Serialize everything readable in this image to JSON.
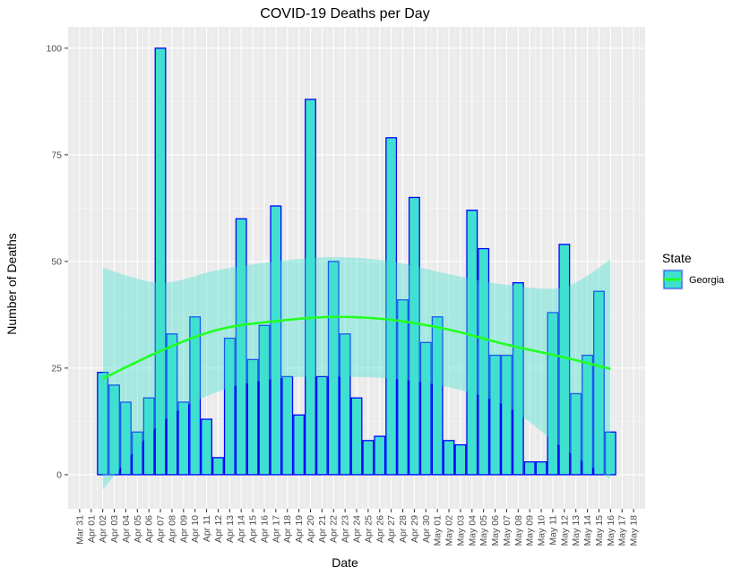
{
  "chart_data": {
    "type": "bar",
    "title": "COVID-19 Deaths per Day",
    "xlabel": "Date",
    "ylabel": "Number of Deaths",
    "ylim": [
      -8,
      105
    ],
    "xlim": [
      "2020-03-30",
      "2020-05-19"
    ],
    "y_ticks": [
      0,
      25,
      50,
      75,
      100
    ],
    "grid": true,
    "x_tick_labels": [
      "Mar 31",
      "Apr 01",
      "Apr 02",
      "Apr 03",
      "Apr 04",
      "Apr 05",
      "Apr 06",
      "Apr 07",
      "Apr 08",
      "Apr 09",
      "Apr 10",
      "Apr 11",
      "Apr 12",
      "Apr 13",
      "Apr 14",
      "Apr 15",
      "Apr 16",
      "Apr 17",
      "Apr 18",
      "Apr 19",
      "Apr 20",
      "Apr 21",
      "Apr 22",
      "Apr 23",
      "Apr 24",
      "Apr 25",
      "Apr 26",
      "Apr 27",
      "Apr 28",
      "Apr 29",
      "Apr 30",
      "May 01",
      "May 02",
      "May 03",
      "May 04",
      "May 05",
      "May 06",
      "May 07",
      "May 08",
      "May 09",
      "May 10",
      "May 11",
      "May 12",
      "May 13",
      "May 14",
      "May 15",
      "May 16",
      "May 17",
      "May 18"
    ],
    "bars": {
      "start_date": "2020-04-02",
      "values": [
        24,
        21,
        17,
        10,
        18,
        100,
        33,
        17,
        37,
        13,
        4,
        32,
        60,
        27,
        35,
        63,
        23,
        14,
        88,
        23,
        50,
        33,
        18,
        8,
        9,
        79,
        41,
        65,
        31,
        37,
        8,
        7,
        62,
        53,
        28,
        28,
        45,
        3,
        3,
        38,
        54,
        19,
        28,
        43,
        10
      ],
      "fill": "#40e0d0",
      "stroke": "#0000ff"
    },
    "smooth": {
      "x": [
        "2020-04-02",
        "2020-04-07",
        "2020-04-12",
        "2020-04-17",
        "2020-04-22",
        "2020-04-27",
        "2020-05-02",
        "2020-05-07",
        "2020-05-12",
        "2020-05-16"
      ],
      "y": [
        22.5,
        29.0,
        34.0,
        36.0,
        37.0,
        36.3,
        34.0,
        30.5,
        27.5,
        24.8
      ],
      "ci_lower": [
        -3.5,
        12.0,
        19.5,
        22.5,
        23.0,
        22.5,
        20.5,
        16.0,
        6.0,
        -1.0
      ],
      "ci_upper": [
        48.5,
        45.0,
        48.0,
        50.0,
        51.0,
        50.0,
        47.0,
        44.5,
        44.0,
        50.5
      ],
      "color": "#22ff22",
      "ribbon_color": "#40e0d0"
    },
    "legend": {
      "title": "State",
      "position": "right",
      "items": [
        {
          "label": "Georgia"
        }
      ]
    }
  }
}
